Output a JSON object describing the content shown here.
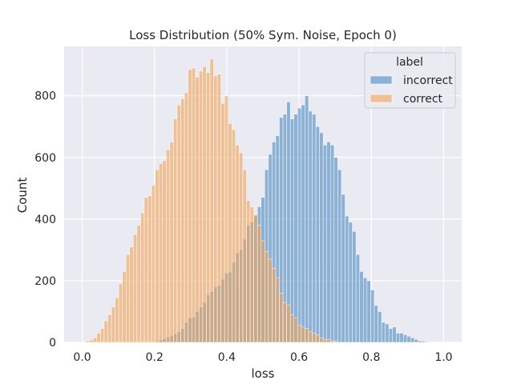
{
  "chart_data": {
    "type": "bar",
    "title": "Loss Distribution (50% Sym. Noise, Epoch 0)",
    "xlabel": "loss",
    "ylabel": "Count",
    "xlim": [
      -0.05,
      1.05
    ],
    "ylim": [
      0,
      960
    ],
    "xticks": [
      "0.0",
      "0.2",
      "0.4",
      "0.6",
      "0.8",
      "1.0"
    ],
    "xtick_values": [
      0,
      0.2,
      0.4,
      0.6,
      0.8,
      1.0
    ],
    "yticks": [
      "0",
      "200",
      "400",
      "600",
      "800"
    ],
    "ytick_values": [
      0,
      200,
      400,
      600,
      800
    ],
    "grid": true,
    "bin_start": -0.01,
    "bin_width": 0.0101,
    "legend": {
      "title": "label",
      "placement": "top-right"
    },
    "series": [
      {
        "name": "incorrect",
        "color": "#4c8bc0",
        "values": [
          0,
          0,
          0,
          0,
          0,
          0,
          0,
          0,
          0,
          0,
          0,
          0,
          0,
          0,
          0,
          0,
          0,
          0,
          0,
          0,
          2,
          4,
          8,
          12,
          18,
          22,
          28,
          35,
          45,
          65,
          80,
          82,
          100,
          115,
          130,
          155,
          165,
          180,
          185,
          205,
          225,
          228,
          260,
          290,
          300,
          335,
          380,
          390,
          410,
          440,
          470,
          560,
          610,
          650,
          670,
          730,
          740,
          780,
          725,
          740,
          760,
          770,
          800,
          750,
          740,
          700,
          680,
          640,
          650,
          640,
          600,
          560,
          480,
          410,
          390,
          360,
          285,
          230,
          210,
          200,
          170,
          120,
          100,
          65,
          60,
          45,
          50,
          30,
          30,
          25,
          20,
          15,
          10,
          5,
          4,
          2,
          0,
          0,
          0,
          0,
          0,
          0,
          0,
          0,
          0,
          0,
          0,
          0,
          0,
          0,
          0
        ]
      },
      {
        "name": "correct",
        "color": "#f0a45c",
        "values": [
          0,
          0,
          5,
          8,
          15,
          30,
          45,
          70,
          90,
          115,
          145,
          190,
          230,
          285,
          310,
          350,
          380,
          420,
          470,
          475,
          510,
          560,
          580,
          590,
          625,
          650,
          725,
          770,
          790,
          810,
          885,
          890,
          860,
          880,
          895,
          875,
          920,
          865,
          870,
          775,
          800,
          710,
          690,
          640,
          615,
          560,
          460,
          440,
          415,
          380,
          330,
          295,
          270,
          240,
          210,
          160,
          130,
          120,
          90,
          80,
          55,
          50,
          45,
          35,
          30,
          25,
          15,
          10,
          10,
          5,
          5,
          0,
          0,
          0,
          0,
          0,
          0,
          0,
          0,
          0,
          0,
          0,
          0,
          0,
          0,
          0,
          0,
          0,
          0,
          0,
          0,
          0,
          0,
          0,
          0,
          0,
          0,
          0,
          0,
          0,
          0,
          0,
          0,
          0,
          0,
          0,
          0,
          0,
          0,
          0,
          0
        ]
      }
    ]
  }
}
